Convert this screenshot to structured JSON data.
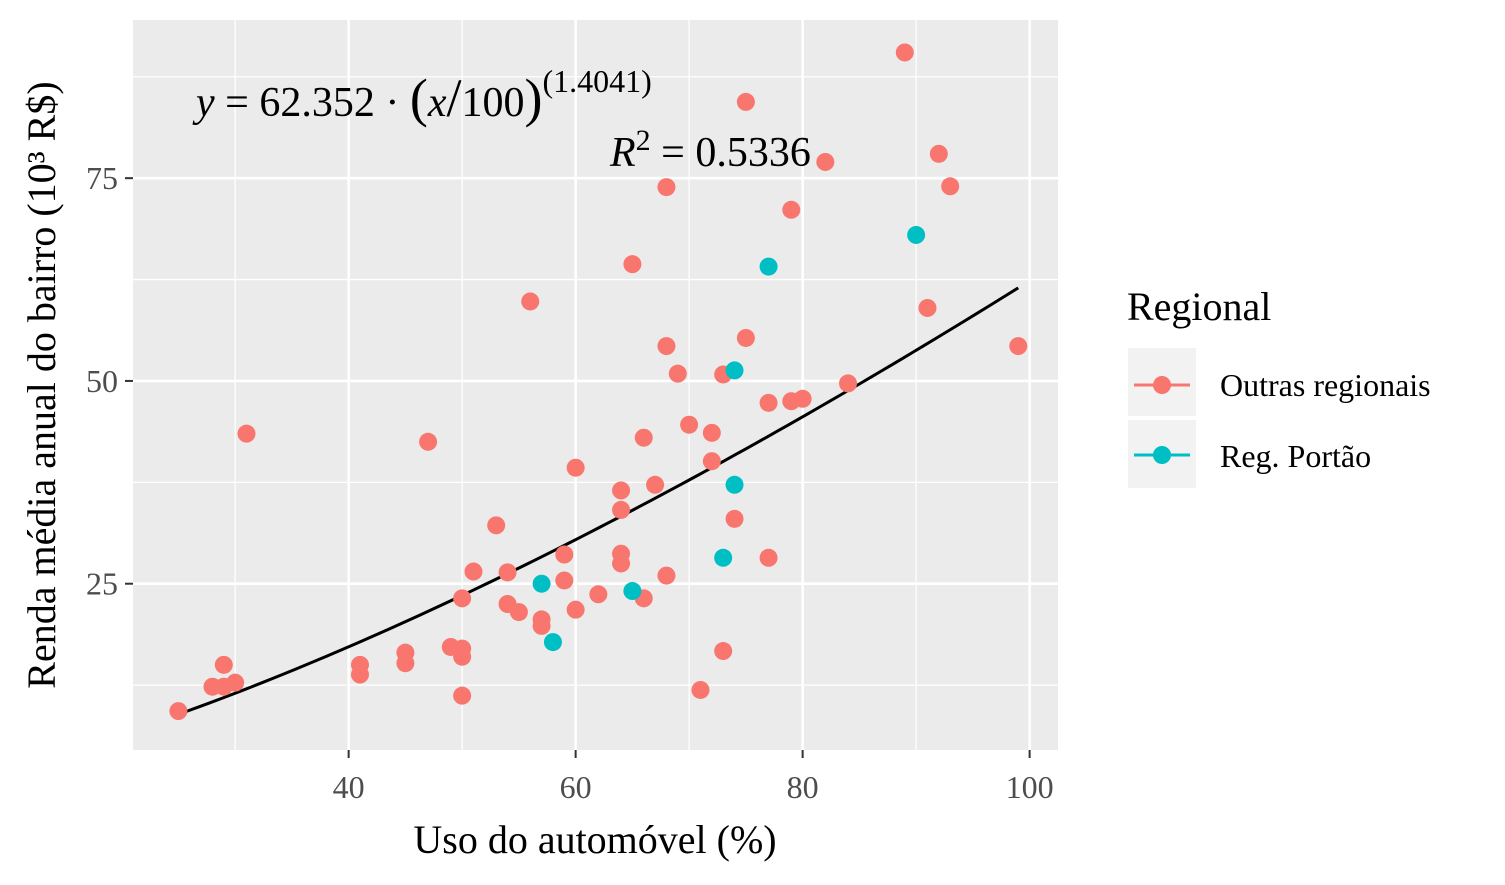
{
  "chart_data": {
    "type": "scatter",
    "xlabel": "Uso do automóvel (%)",
    "ylabel": "Renda média anual do bairro (10³ R$)",
    "xlim": [
      21,
      102.5
    ],
    "ylim": [
      4.5,
      94.5
    ],
    "x_ticks": [
      40,
      60,
      80,
      100
    ],
    "y_ticks": [
      25,
      50,
      75
    ],
    "grid": true,
    "legend": {
      "title": "Regional",
      "position": "right",
      "entries": [
        "Outras regionais",
        "Reg. Portão"
      ]
    },
    "annotation": {
      "equation": {
        "y": "y",
        "eq": " = 62.352 · ",
        "lparen": "(",
        "x": "x",
        "slash": "/",
        "hundred": "100",
        "rparen": ")",
        "exponent": "(1.4041)"
      },
      "r2": {
        "r": "R",
        "sup": "2",
        "value": " = 0.5336"
      }
    },
    "fit": {
      "a": 62.352,
      "b": 1.4041,
      "x_range": [
        25,
        99
      ],
      "color": "#000000"
    },
    "series": [
      {
        "name": "Outras regionais",
        "color": "#F8766D",
        "points": [
          [
            25,
            9.3
          ],
          [
            28,
            12.3
          ],
          [
            29,
            12.3
          ],
          [
            29,
            15.0
          ],
          [
            30,
            12.8
          ],
          [
            31,
            43.5
          ],
          [
            41,
            15.0
          ],
          [
            41,
            13.8
          ],
          [
            45,
            16.5
          ],
          [
            45,
            15.2
          ],
          [
            47,
            42.5
          ],
          [
            49,
            17.2
          ],
          [
            50,
            23.2
          ],
          [
            50,
            17.0
          ],
          [
            50,
            16.0
          ],
          [
            50,
            11.2
          ],
          [
            51,
            26.5
          ],
          [
            53,
            32.2
          ],
          [
            54,
            26.4
          ],
          [
            54,
            22.5
          ],
          [
            55,
            21.5
          ],
          [
            56,
            59.8
          ],
          [
            57,
            20.6
          ],
          [
            57,
            19.8
          ],
          [
            59,
            28.6
          ],
          [
            59,
            25.4
          ],
          [
            60,
            39.3
          ],
          [
            60,
            21.8
          ],
          [
            62,
            23.7
          ],
          [
            64,
            36.5
          ],
          [
            64,
            34.1
          ],
          [
            64,
            28.7
          ],
          [
            64,
            27.5
          ],
          [
            65,
            64.4
          ],
          [
            66,
            43.0
          ],
          [
            66,
            23.2
          ],
          [
            67,
            37.2
          ],
          [
            68,
            73.9
          ],
          [
            68,
            54.3
          ],
          [
            68,
            26.0
          ],
          [
            69,
            50.9
          ],
          [
            70,
            44.6
          ],
          [
            71,
            11.9
          ],
          [
            72,
            43.6
          ],
          [
            72,
            40.1
          ],
          [
            73,
            50.8
          ],
          [
            73,
            16.7
          ],
          [
            74,
            33.0
          ],
          [
            75,
            84.4
          ],
          [
            75,
            55.3
          ],
          [
            77,
            47.3
          ],
          [
            77,
            28.2
          ],
          [
            79,
            71.1
          ],
          [
            79,
            47.5
          ],
          [
            80,
            47.8
          ],
          [
            82,
            77.0
          ],
          [
            84,
            49.7
          ],
          [
            89,
            90.5
          ],
          [
            91,
            59.0
          ],
          [
            92,
            78.0
          ],
          [
            93,
            74.0
          ],
          [
            99,
            54.3
          ]
        ]
      },
      {
        "name": "Reg. Portão",
        "color": "#00BFC4",
        "points": [
          [
            57,
            25.0
          ],
          [
            58,
            17.8
          ],
          [
            65,
            24.1
          ],
          [
            73,
            28.2
          ],
          [
            74,
            51.3
          ],
          [
            74,
            37.2
          ],
          [
            77,
            64.1
          ],
          [
            90,
            68.0
          ]
        ]
      }
    ]
  }
}
